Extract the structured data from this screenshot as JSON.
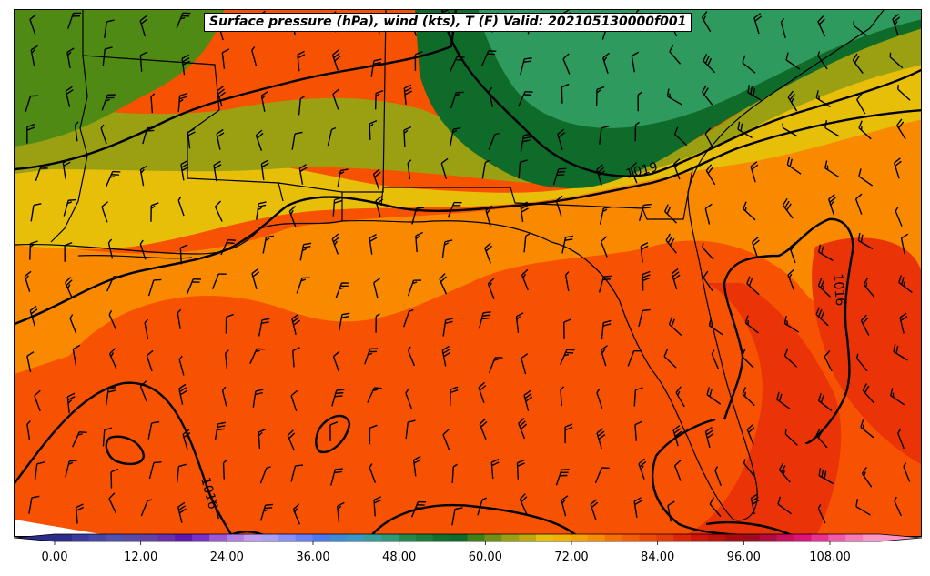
{
  "title": "Surface pressure (hPa), wind (kts), T (F) Valid: 202105130000f001",
  "map": {
    "contour_labels": [
      {
        "text": "1019"
      },
      {
        "text": "1016"
      },
      {
        "text": "1016"
      }
    ],
    "regions": {
      "north_green": "#2e9a5e",
      "dark_green": "#0f6b2a",
      "olive": "#9aa012",
      "yellow": "#e8bf08",
      "orange": "#f98a00",
      "red_orange": "#f65202",
      "red": "#ea3306",
      "left_green": "#4f8a14"
    }
  },
  "colorbar": {
    "tick_labels": [
      "0.00",
      "12.00",
      "24.00",
      "36.00",
      "48.00",
      "60.00",
      "72.00",
      "84.00",
      "96.00",
      "108.00"
    ],
    "tick_values": [
      0,
      12,
      24,
      36,
      48,
      60,
      72,
      84,
      96,
      108
    ],
    "min": -6,
    "max": 120,
    "colors": [
      "#2c2c8c",
      "#3a3aa0",
      "#4646a8",
      "#5050b2",
      "#5a4aa6",
      "#6440a8",
      "#6a2fb0",
      "#5e16b4",
      "#7a2fc8",
      "#9b57d8",
      "#b27ee2",
      "#c49bee",
      "#a99df4",
      "#8b8ff8",
      "#6a7ff8",
      "#4a78f0",
      "#3c8ad8",
      "#3a96c4",
      "#349e9a",
      "#2f9a78",
      "#238a4e",
      "#1a7d3c",
      "#107030",
      "#0f6b2a",
      "#3f7f18",
      "#6f9012",
      "#9aa012",
      "#bfa80a",
      "#e8bf08",
      "#f4b000",
      "#f8a000",
      "#fa8a00",
      "#f97000",
      "#f65c02",
      "#f04a04",
      "#e83a06",
      "#dd2608",
      "#d0150a",
      "#c0100a",
      "#a80c10",
      "#a00a1c",
      "#b40a40",
      "#cc0c5c",
      "#e01278",
      "#ec2f92",
      "#f25aa8",
      "#f87ab8",
      "#fc95c8"
    ]
  }
}
